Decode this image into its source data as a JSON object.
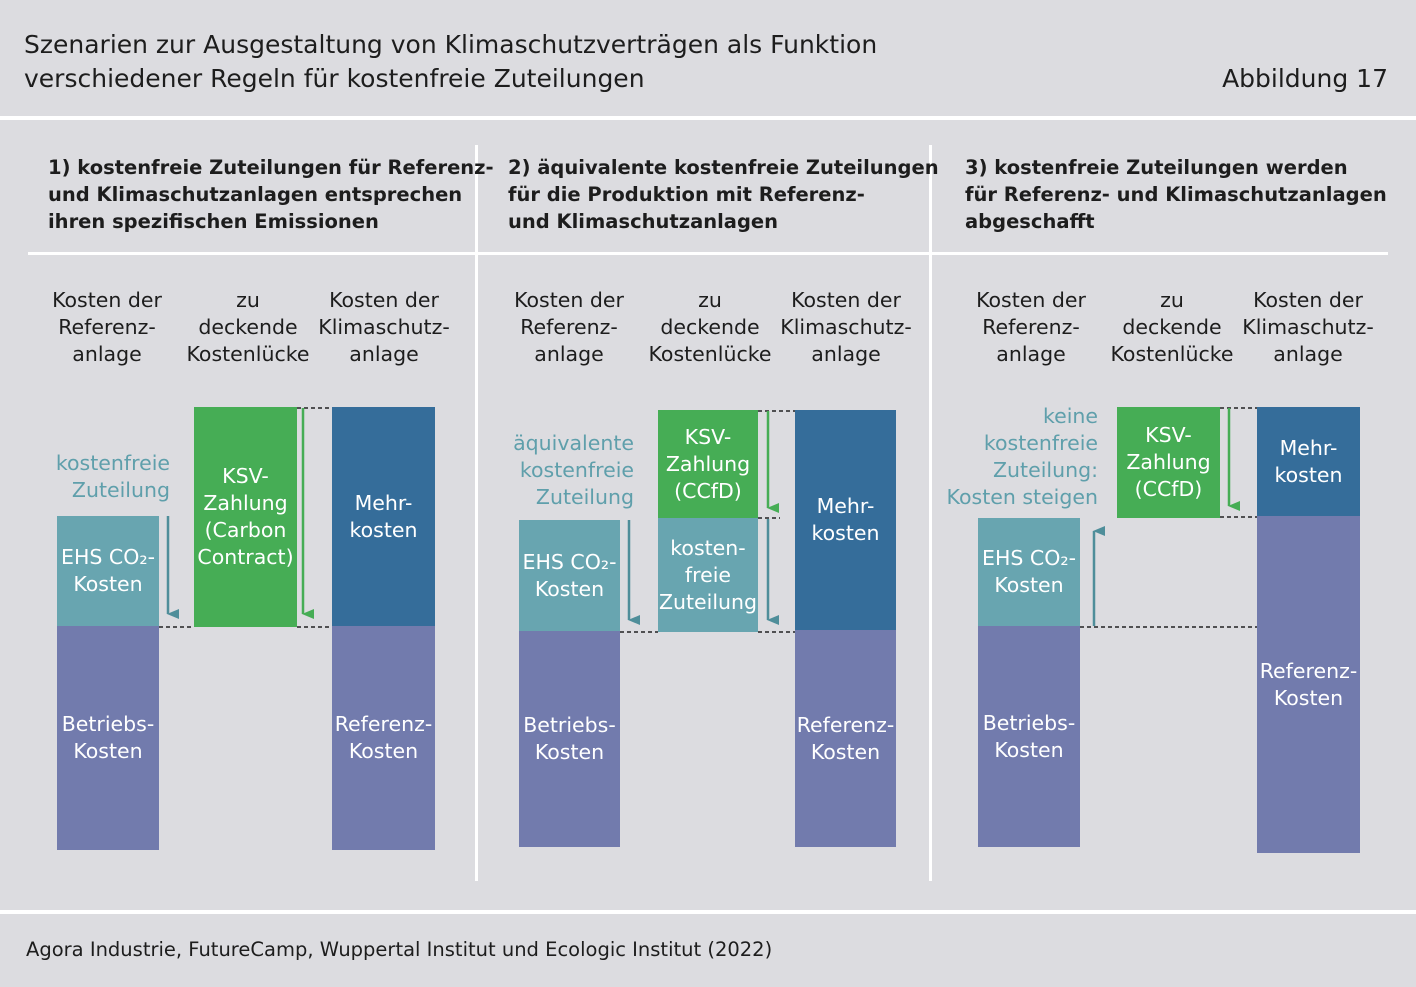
{
  "header": {
    "title": "Szenarien zur Ausgestaltung von Klimaschutzverträgen als Funktion\nverschiedener Regeln für kostenfreie Zuteilungen",
    "figure": "Abbildung 17"
  },
  "panels": [
    {
      "title": "1) kostenfreie Zuteilungen für Referenz-\nund Klimaschutzanlagen entsprechen\nihren spezifischen Emissionen",
      "col_ref": "Kosten der\nReferenz-\nanlage",
      "col_gap": "zu\ndeckende\nKostenlücke",
      "col_klima": "Kosten der\nKlimaschutz-\nanlage",
      "side_label": "kostenfreie\nZuteilung",
      "ref_top": "EHS CO₂-\nKosten",
      "ref_bottom": "Betriebs-\nKosten",
      "gap_box": "KSV-\nZahlung\n(Carbon\nContract)",
      "klima_top": "Mehr-\nkosten",
      "klima_bottom": "Referenz-\nKosten"
    },
    {
      "title": "2) äquivalente kostenfreie Zuteilungen\nfür die Produktion mit Referenz-\nund Klimaschutzanlagen",
      "col_ref": "Kosten der\nReferenz-\nanlage",
      "col_gap": "zu\ndeckende\nKostenlücke",
      "col_klima": "Kosten der\nKlimaschutz-\nanlage",
      "side_label": "äquivalente\nkostenfreie\nZuteilung",
      "ref_top": "EHS CO₂-\nKosten",
      "ref_bottom": "Betriebs-\nKosten",
      "gap_box": "KSV-\nZahlung\n(CCfD)",
      "gap_box2": "kosten-\nfreie\nZuteilung",
      "klima_top": "Mehr-\nkosten",
      "klima_bottom": "Referenz-\nKosten"
    },
    {
      "title": "3) kostenfreie Zuteilungen werden\nfür Referenz- und Klimaschutzanlagen\nabgeschafft",
      "col_ref": "Kosten der\nReferenz-\nanlage",
      "col_gap": "zu\ndeckende\nKostenlücke",
      "col_klima": "Kosten der\nKlimaschutz-\nanlage",
      "side_label": "keine\nkostenfreie\nZuteilung:\nKosten steigen",
      "ref_top": "EHS CO₂-\nKosten",
      "ref_bottom": "Betriebs-\nKosten",
      "gap_box": "KSV-\nZahlung\n(CCfD)",
      "klima_top": "Mehr-\nkosten",
      "klima_bottom": "Referenz-\nKosten"
    }
  ],
  "source": "Agora Industrie, FutureCamp, Wuppertal Institut und Ecologic Institut (2022)",
  "colors": {
    "background": "#dcdce0",
    "operating_costs": "#727bad",
    "ets_costs": "#68a5b0",
    "ksv_payment": "#46ad55",
    "extra_costs": "#356d9a",
    "label_teal": "#5f9fab"
  }
}
